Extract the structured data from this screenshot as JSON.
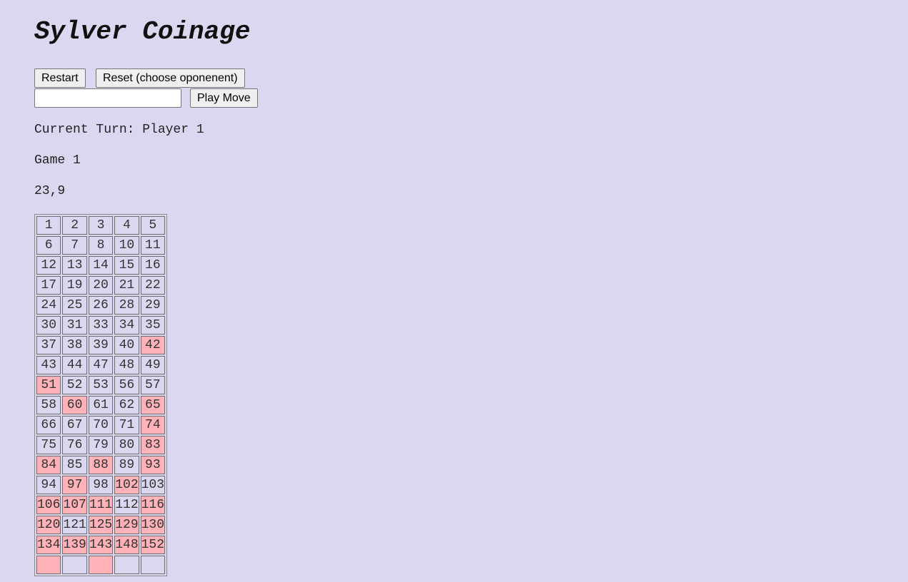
{
  "title": "Sylver Coinage",
  "controls": {
    "restart_label": "Restart",
    "reset_label": "Reset (choose oponenent)",
    "move_input_value": "",
    "play_label": "Play Move"
  },
  "status": {
    "turn": "Current Turn: Player 1",
    "game": "Game 1",
    "moves": "23,9"
  },
  "colors": {
    "background": "#d9d8f0",
    "highlight": "#ffb3b8"
  },
  "grid": {
    "rows": [
      [
        {
          "n": "1"
        },
        {
          "n": "2"
        },
        {
          "n": "3"
        },
        {
          "n": "4"
        },
        {
          "n": "5"
        }
      ],
      [
        {
          "n": "6"
        },
        {
          "n": "7"
        },
        {
          "n": "8"
        },
        {
          "n": "10"
        },
        {
          "n": "11"
        }
      ],
      [
        {
          "n": "12"
        },
        {
          "n": "13"
        },
        {
          "n": "14"
        },
        {
          "n": "15"
        },
        {
          "n": "16"
        }
      ],
      [
        {
          "n": "17"
        },
        {
          "n": "19"
        },
        {
          "n": "20"
        },
        {
          "n": "21"
        },
        {
          "n": "22"
        }
      ],
      [
        {
          "n": "24"
        },
        {
          "n": "25"
        },
        {
          "n": "26"
        },
        {
          "n": "28"
        },
        {
          "n": "29"
        }
      ],
      [
        {
          "n": "30"
        },
        {
          "n": "31"
        },
        {
          "n": "33"
        },
        {
          "n": "34"
        },
        {
          "n": "35"
        }
      ],
      [
        {
          "n": "37"
        },
        {
          "n": "38"
        },
        {
          "n": "39"
        },
        {
          "n": "40"
        },
        {
          "n": "42",
          "hl": true
        }
      ],
      [
        {
          "n": "43"
        },
        {
          "n": "44"
        },
        {
          "n": "47"
        },
        {
          "n": "48"
        },
        {
          "n": "49"
        }
      ],
      [
        {
          "n": "51",
          "hl": true
        },
        {
          "n": "52"
        },
        {
          "n": "53"
        },
        {
          "n": "56"
        },
        {
          "n": "57"
        }
      ],
      [
        {
          "n": "58"
        },
        {
          "n": "60",
          "hl": true
        },
        {
          "n": "61"
        },
        {
          "n": "62"
        },
        {
          "n": "65",
          "hl": true
        }
      ],
      [
        {
          "n": "66"
        },
        {
          "n": "67"
        },
        {
          "n": "70"
        },
        {
          "n": "71"
        },
        {
          "n": "74",
          "hl": true
        }
      ],
      [
        {
          "n": "75"
        },
        {
          "n": "76"
        },
        {
          "n": "79"
        },
        {
          "n": "80"
        },
        {
          "n": "83",
          "hl": true
        }
      ],
      [
        {
          "n": "84",
          "hl": true
        },
        {
          "n": "85"
        },
        {
          "n": "88",
          "hl": true
        },
        {
          "n": "89"
        },
        {
          "n": "93",
          "hl": true
        }
      ],
      [
        {
          "n": "94"
        },
        {
          "n": "97",
          "hl": true
        },
        {
          "n": "98"
        },
        {
          "n": "102",
          "hl": true
        },
        {
          "n": "103"
        }
      ],
      [
        {
          "n": "106",
          "hl": true
        },
        {
          "n": "107",
          "hl": true
        },
        {
          "n": "111",
          "hl": true
        },
        {
          "n": "112"
        },
        {
          "n": "116",
          "hl": true
        }
      ],
      [
        {
          "n": "120",
          "hl": true
        },
        {
          "n": "121"
        },
        {
          "n": "125",
          "hl": true
        },
        {
          "n": "129",
          "hl": true
        },
        {
          "n": "130",
          "hl": true
        }
      ],
      [
        {
          "n": "134",
          "hl": true
        },
        {
          "n": "139",
          "hl": true
        },
        {
          "n": "143",
          "hl": true
        },
        {
          "n": "148",
          "hl": true
        },
        {
          "n": "152",
          "hl": true
        }
      ],
      [
        {
          "n": "",
          "hl": true
        },
        {
          "n": ""
        },
        {
          "n": "",
          "hl": true
        },
        {
          "n": ""
        },
        {
          "n": ""
        }
      ]
    ]
  }
}
